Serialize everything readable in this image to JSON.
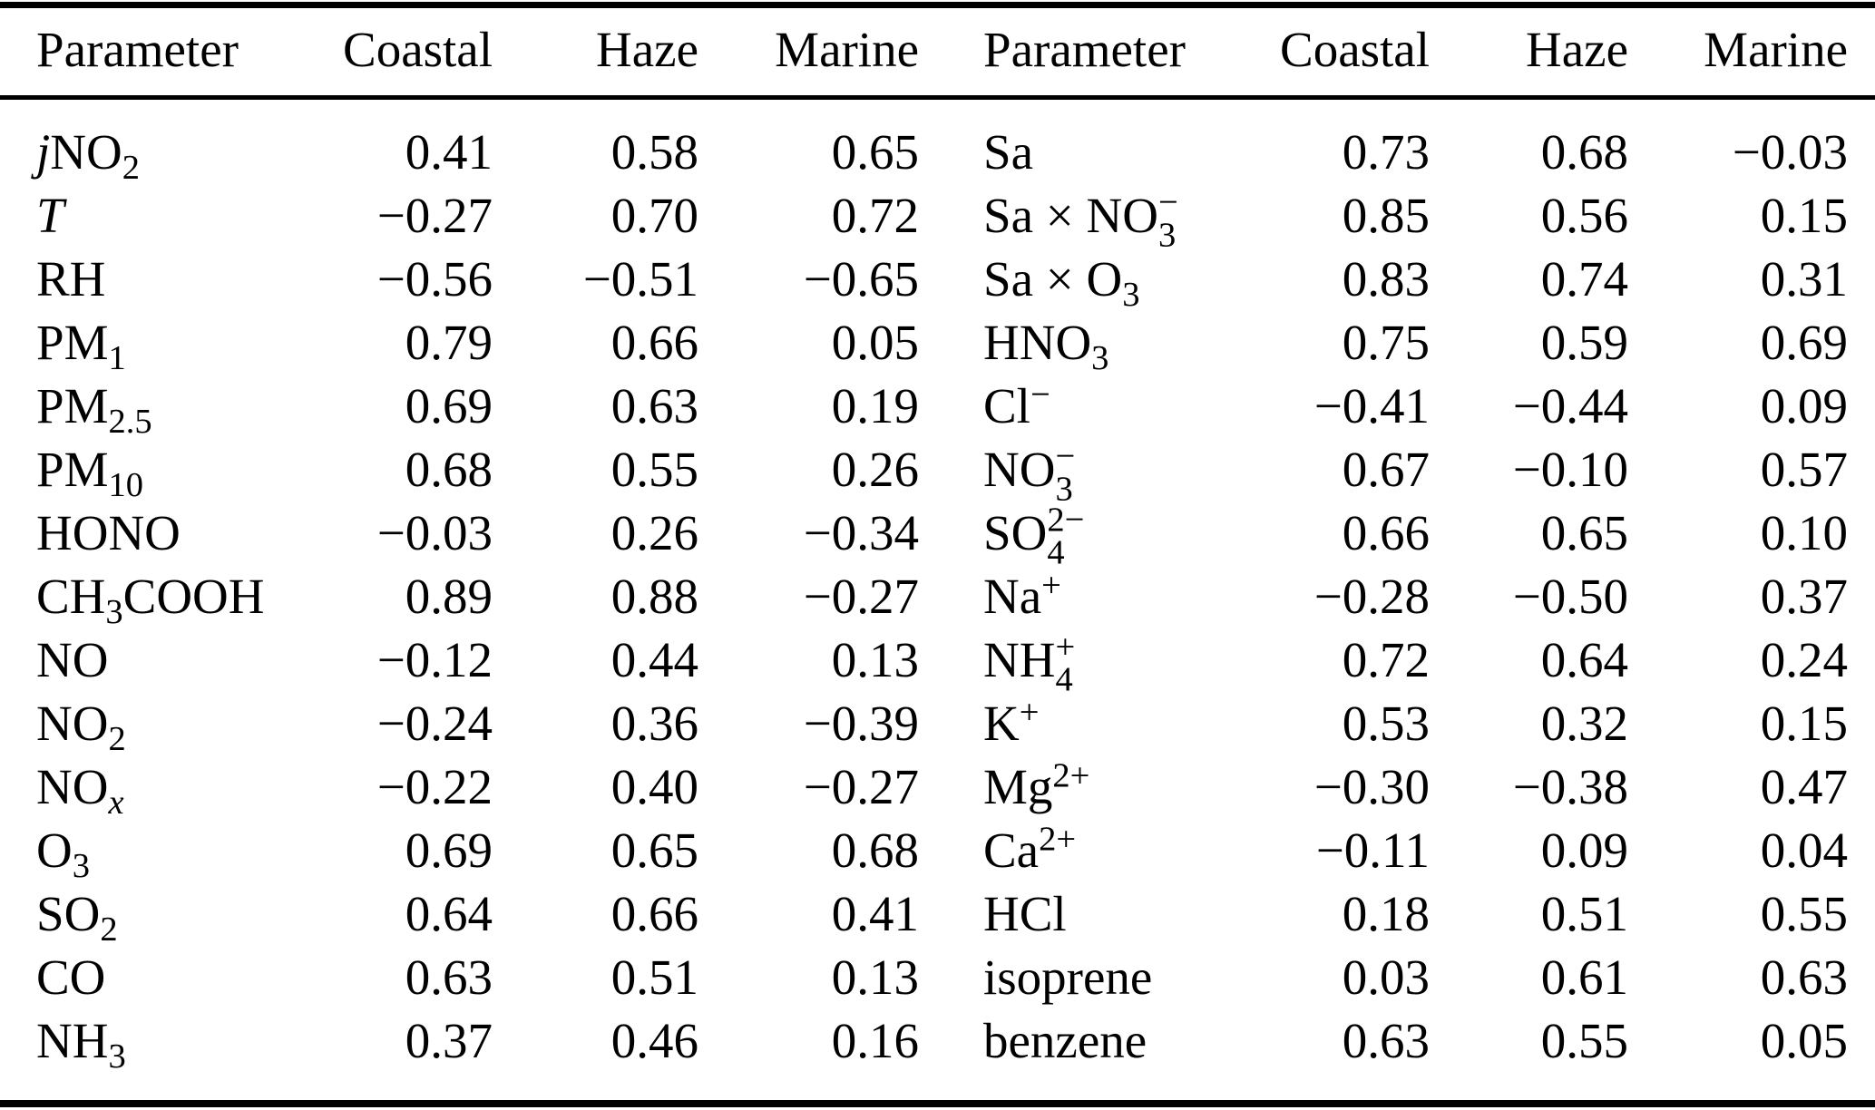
{
  "colors": {
    "background": "#ffffff",
    "text": "#000000",
    "rule": "#000000"
  },
  "table": {
    "headers": [
      "Parameter",
      "Coastal",
      "Haze",
      "Marine",
      "Parameter",
      "Coastal",
      "Haze",
      "Marine"
    ],
    "rows": [
      {
        "left": {
          "param_text": "jNO2",
          "param": [
            {
              "i": "j"
            },
            {
              "t": "NO"
            },
            {
              "sub": "2"
            }
          ],
          "values": [
            "0.41",
            "0.58",
            "0.65"
          ]
        },
        "right": {
          "param_text": "Sa",
          "param": [
            {
              "t": "Sa"
            }
          ],
          "values": [
            "0.73",
            "0.68",
            "−0.03"
          ]
        }
      },
      {
        "left": {
          "param_text": "T",
          "param": [
            {
              "i": "T"
            }
          ],
          "values": [
            "−0.27",
            "0.70",
            "0.72"
          ]
        },
        "right": {
          "param_text": "Sa × NO3−",
          "param": [
            {
              "t": "Sa × NO"
            },
            {
              "sub": "3",
              "sup": "−"
            }
          ],
          "values": [
            "0.85",
            "0.56",
            "0.15"
          ]
        }
      },
      {
        "left": {
          "param_text": "RH",
          "param": [
            {
              "t": "RH"
            }
          ],
          "values": [
            "−0.56",
            "−0.51",
            "−0.65"
          ]
        },
        "right": {
          "param_text": "Sa × O3",
          "param": [
            {
              "t": "Sa × O"
            },
            {
              "sub": "3"
            }
          ],
          "values": [
            "0.83",
            "0.74",
            "0.31"
          ]
        }
      },
      {
        "left": {
          "param_text": "PM1",
          "param": [
            {
              "t": "PM"
            },
            {
              "sub": "1"
            }
          ],
          "values": [
            "0.79",
            "0.66",
            "0.05"
          ]
        },
        "right": {
          "param_text": "HNO3",
          "param": [
            {
              "t": "HNO"
            },
            {
              "sub": "3"
            }
          ],
          "values": [
            "0.75",
            "0.59",
            "0.69"
          ]
        }
      },
      {
        "left": {
          "param_text": "PM2.5",
          "param": [
            {
              "t": "PM"
            },
            {
              "sub": "2.5"
            }
          ],
          "values": [
            "0.69",
            "0.63",
            "0.19"
          ]
        },
        "right": {
          "param_text": "Cl−",
          "param": [
            {
              "t": "Cl"
            },
            {
              "sup": "−"
            }
          ],
          "values": [
            "−0.41",
            "−0.44",
            "0.09"
          ]
        }
      },
      {
        "left": {
          "param_text": "PM10",
          "param": [
            {
              "t": "PM"
            },
            {
              "sub": "10"
            }
          ],
          "values": [
            "0.68",
            "0.55",
            "0.26"
          ]
        },
        "right": {
          "param_text": "NO3−",
          "param": [
            {
              "t": "NO"
            },
            {
              "sub": "3",
              "sup": "−"
            }
          ],
          "values": [
            "0.67",
            "−0.10",
            "0.57"
          ]
        }
      },
      {
        "left": {
          "param_text": "HONO",
          "param": [
            {
              "t": "HONO"
            }
          ],
          "values": [
            "−0.03",
            "0.26",
            "−0.34"
          ]
        },
        "right": {
          "param_text": "SO4 2−",
          "param": [
            {
              "t": "SO"
            },
            {
              "sub": "4",
              "sup": "2−"
            }
          ],
          "values": [
            "0.66",
            "0.65",
            "0.10"
          ]
        }
      },
      {
        "left": {
          "param_text": "CH3COOH",
          "param": [
            {
              "t": "CH"
            },
            {
              "sub": "3"
            },
            {
              "t": "COOH"
            }
          ],
          "values": [
            "0.89",
            "0.88",
            "−0.27"
          ]
        },
        "right": {
          "param_text": "Na+",
          "param": [
            {
              "t": "Na"
            },
            {
              "sup": "+"
            }
          ],
          "values": [
            "−0.28",
            "−0.50",
            "0.37"
          ]
        }
      },
      {
        "left": {
          "param_text": "NO",
          "param": [
            {
              "t": "NO"
            }
          ],
          "values": [
            "−0.12",
            "0.44",
            "0.13"
          ]
        },
        "right": {
          "param_text": "NH4+",
          "param": [
            {
              "t": "NH"
            },
            {
              "sub": "4",
              "sup": "+"
            }
          ],
          "values": [
            "0.72",
            "0.64",
            "0.24"
          ]
        }
      },
      {
        "left": {
          "param_text": "NO2",
          "param": [
            {
              "t": "NO"
            },
            {
              "sub": "2"
            }
          ],
          "values": [
            "−0.24",
            "0.36",
            "−0.39"
          ]
        },
        "right": {
          "param_text": "K+",
          "param": [
            {
              "t": "K"
            },
            {
              "sup": "+"
            }
          ],
          "values": [
            "0.53",
            "0.32",
            "0.15"
          ]
        }
      },
      {
        "left": {
          "param_text": "NOx",
          "param": [
            {
              "t": "NO"
            },
            {
              "sub": "x",
              "i": true
            }
          ],
          "values": [
            "−0.22",
            "0.40",
            "−0.27"
          ]
        },
        "right": {
          "param_text": "Mg2+",
          "param": [
            {
              "t": "Mg"
            },
            {
              "sup": "2+"
            }
          ],
          "values": [
            "−0.30",
            "−0.38",
            "0.47"
          ]
        }
      },
      {
        "left": {
          "param_text": "O3",
          "param": [
            {
              "t": "O"
            },
            {
              "sub": "3"
            }
          ],
          "values": [
            "0.69",
            "0.65",
            "0.68"
          ]
        },
        "right": {
          "param_text": "Ca2+",
          "param": [
            {
              "t": "Ca"
            },
            {
              "sup": "2+"
            }
          ],
          "values": [
            "−0.11",
            "0.09",
            "0.04"
          ]
        }
      },
      {
        "left": {
          "param_text": "SO2",
          "param": [
            {
              "t": "SO"
            },
            {
              "sub": "2"
            }
          ],
          "values": [
            "0.64",
            "0.66",
            "0.41"
          ]
        },
        "right": {
          "param_text": "HCl",
          "param": [
            {
              "t": "HCl"
            }
          ],
          "values": [
            "0.18",
            "0.51",
            "0.55"
          ]
        }
      },
      {
        "left": {
          "param_text": "CO",
          "param": [
            {
              "t": "CO"
            }
          ],
          "values": [
            "0.63",
            "0.51",
            "0.13"
          ]
        },
        "right": {
          "param_text": "isoprene",
          "param": [
            {
              "t": "isoprene"
            }
          ],
          "values": [
            "0.03",
            "0.61",
            "0.63"
          ]
        }
      },
      {
        "left": {
          "param_text": "NH3",
          "param": [
            {
              "t": "NH"
            },
            {
              "sub": "3"
            }
          ],
          "values": [
            "0.37",
            "0.46",
            "0.16"
          ]
        },
        "right": {
          "param_text": "benzene",
          "param": [
            {
              "t": "benzene"
            }
          ],
          "values": [
            "0.63",
            "0.55",
            "0.05"
          ]
        }
      }
    ]
  }
}
